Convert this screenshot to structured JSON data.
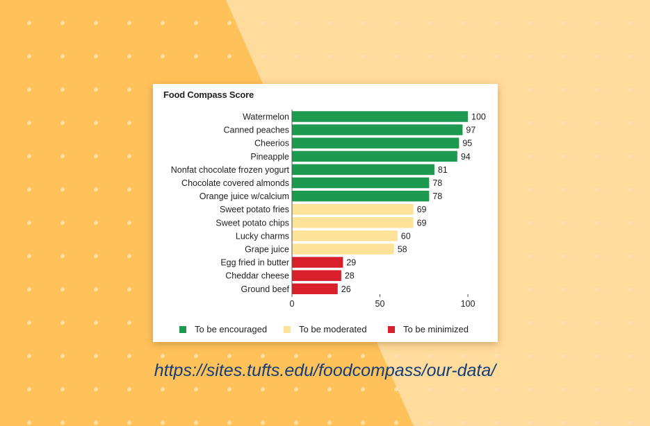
{
  "source_url": "https://sites.tufts.edu/foodcompass/our-data/",
  "background": {
    "light": "#ffdb9c",
    "dark": "#ffc15a",
    "dot": "#ffe7b8"
  },
  "colors": {
    "encouraged": "#1e9a50",
    "moderated": "#fde29a",
    "minimized": "#d7202c"
  },
  "chart_data": {
    "type": "bar",
    "orientation": "horizontal",
    "title": "Food Compass Score",
    "categories": [
      "Watermelon",
      "Canned peaches",
      "Cheerios",
      "Pineapple",
      "Nonfat chocolate frozen yogurt",
      "Chocolate covered almonds",
      "Orange juice w/calcium",
      "Sweet potato fries",
      "Sweet potato chips",
      "Lucky charms",
      "Grape juice",
      "Egg fried in butter",
      "Cheddar cheese",
      "Ground beef"
    ],
    "values": [
      100,
      97,
      95,
      94,
      81,
      78,
      78,
      69,
      69,
      60,
      58,
      29,
      28,
      26
    ],
    "groups": [
      "encouraged",
      "encouraged",
      "encouraged",
      "encouraged",
      "encouraged",
      "encouraged",
      "encouraged",
      "moderated",
      "moderated",
      "moderated",
      "moderated",
      "minimized",
      "minimized",
      "minimized"
    ],
    "xlim": [
      0,
      100
    ],
    "xticks": [
      "0",
      "50",
      "100"
    ],
    "legend": {
      "placement": "bottom",
      "items": [
        {
          "key": "encouraged",
          "label": "To be encouraged"
        },
        {
          "key": "moderated",
          "label": "To be moderated"
        },
        {
          "key": "minimized",
          "label": "To be minimized"
        }
      ]
    }
  }
}
